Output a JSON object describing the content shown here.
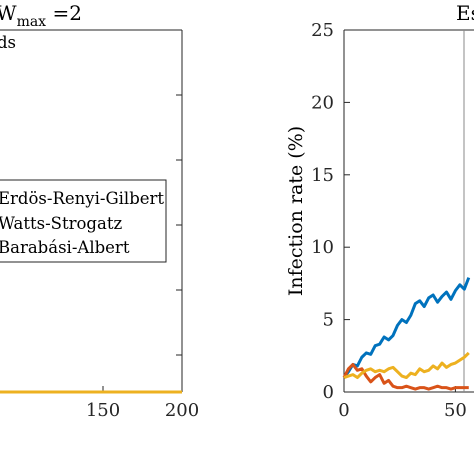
{
  "chart_data": [
    {
      "type": "line",
      "title_main": "W",
      "title_sub": "max",
      "title_rest": " =2",
      "partial_label": "ds",
      "xlim": [
        0,
        200
      ],
      "x_ticks": [
        150,
        200
      ],
      "x_tick_labels": [
        "150",
        "200"
      ],
      "legend": {
        "placement": "center-left",
        "entries": [
          "Erdös-Renyi-Gilbert",
          "Watts-Strogatz",
          "Barabási-Albert"
        ]
      },
      "series": [
        {
          "color": "#edb120",
          "x": [
            0,
            200
          ],
          "y": [
            0,
            0
          ]
        }
      ]
    },
    {
      "type": "line",
      "title": "Es",
      "ylabel": "Infection rate (%)",
      "xlim": [
        0,
        57
      ],
      "ylim": [
        0,
        25
      ],
      "y_ticks": [
        0,
        5,
        10,
        15,
        20,
        25
      ],
      "y_tick_labels": [
        "0",
        "5",
        "10",
        "15",
        "20",
        "25"
      ],
      "x_ticks": [
        0,
        50
      ],
      "x_tick_labels": [
        "0",
        "50"
      ],
      "series": [
        {
          "color": "#0072bd",
          "x": [
            0,
            2,
            4,
            6,
            8,
            10,
            12,
            14,
            16,
            18,
            20,
            22,
            24,
            26,
            28,
            30,
            32,
            34,
            36,
            38,
            40,
            42,
            44,
            46,
            48,
            50,
            52,
            54,
            56
          ],
          "y": [
            1.0,
            1.4,
            1.9,
            1.8,
            2.4,
            2.7,
            2.6,
            3.2,
            3.3,
            3.8,
            3.6,
            3.9,
            4.6,
            5.0,
            4.8,
            5.3,
            6.1,
            6.3,
            5.9,
            6.5,
            6.7,
            6.2,
            6.6,
            6.9,
            6.4,
            7.0,
            7.4,
            7.1,
            7.9
          ]
        },
        {
          "color": "#d95319",
          "x": [
            0,
            2,
            4,
            6,
            8,
            10,
            12,
            14,
            16,
            18,
            20,
            22,
            24,
            26,
            28,
            30,
            32,
            34,
            36,
            38,
            40,
            42,
            44,
            46,
            48,
            50,
            52,
            54,
            56
          ],
          "y": [
            1.0,
            1.6,
            1.9,
            1.5,
            1.6,
            1.1,
            0.7,
            1.0,
            1.2,
            0.6,
            0.8,
            0.4,
            0.3,
            0.3,
            0.4,
            0.3,
            0.2,
            0.3,
            0.3,
            0.2,
            0.3,
            0.4,
            0.3,
            0.3,
            0.2,
            0.3,
            0.3,
            0.3,
            0.3
          ]
        },
        {
          "color": "#edb120",
          "x": [
            0,
            2,
            4,
            6,
            8,
            10,
            12,
            14,
            16,
            18,
            20,
            22,
            24,
            26,
            28,
            30,
            32,
            34,
            36,
            38,
            40,
            42,
            44,
            46,
            48,
            50,
            52,
            54,
            56
          ],
          "y": [
            1.0,
            1.1,
            1.2,
            1.0,
            1.3,
            1.5,
            1.6,
            1.4,
            1.5,
            1.4,
            1.6,
            1.7,
            1.4,
            1.1,
            1.0,
            1.3,
            1.2,
            1.6,
            1.4,
            1.5,
            1.8,
            1.6,
            2.0,
            1.7,
            1.9,
            2.0,
            2.2,
            2.4,
            2.7
          ]
        }
      ]
    }
  ]
}
